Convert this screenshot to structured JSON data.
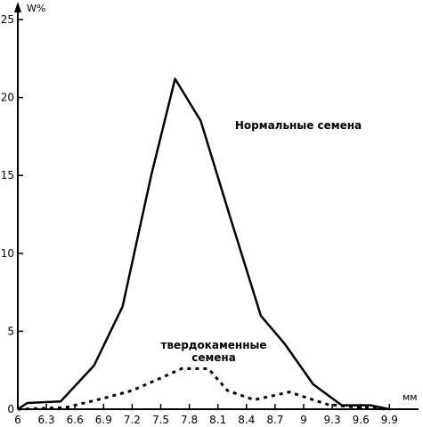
{
  "chart_data": {
    "type": "line",
    "ylabel": "W%",
    "xlabel": "мм",
    "xlim": [
      6.0,
      10.0
    ],
    "ylim": [
      0,
      25
    ],
    "grid": false,
    "x_ticks": [
      6.0,
      6.3,
      6.6,
      6.9,
      7.2,
      7.5,
      7.8,
      8.1,
      8.4,
      8.7,
      9.0,
      9.3,
      9.6,
      9.9
    ],
    "x_tick_labels": [
      "6",
      "6.3",
      "6.6",
      "6.9",
      "7.2",
      "7.5",
      "7.8",
      "8.1",
      "8.4",
      "8.7",
      "9",
      "9.3",
      "9.6",
      "9.9"
    ],
    "y_ticks": [
      0,
      5,
      10,
      15,
      20,
      25
    ],
    "y_tick_labels": [
      "0",
      "5",
      "10",
      "15",
      "20",
      "25"
    ],
    "series": [
      {
        "name": "Нормальные семена",
        "style": "solid",
        "x": [
          6.0,
          6.1,
          6.45,
          6.8,
          7.1,
          7.4,
          7.65,
          7.92,
          8.22,
          8.55,
          8.8,
          9.1,
          9.4,
          9.7,
          9.9
        ],
        "y": [
          0.0,
          0.4,
          0.5,
          2.8,
          6.6,
          15.0,
          21.2,
          18.5,
          12.5,
          6.0,
          4.2,
          1.6,
          0.25,
          0.25,
          0.0
        ]
      },
      {
        "name": "твердокаменные семена",
        "style": "dotted",
        "x": [
          6.0,
          6.5,
          6.9,
          7.2,
          7.5,
          7.72,
          8.0,
          8.2,
          8.48,
          8.85,
          9.25,
          9.6,
          9.9
        ],
        "y": [
          0.0,
          0.1,
          0.7,
          1.2,
          2.0,
          2.6,
          2.6,
          1.2,
          0.6,
          1.1,
          0.3,
          0.1,
          0.0
        ]
      }
    ],
    "annotations": [
      {
        "series": 0,
        "lines": [
          "Нормальные семена"
        ]
      },
      {
        "series": 1,
        "lines": [
          "твердокаменные",
          "семена"
        ]
      }
    ]
  }
}
